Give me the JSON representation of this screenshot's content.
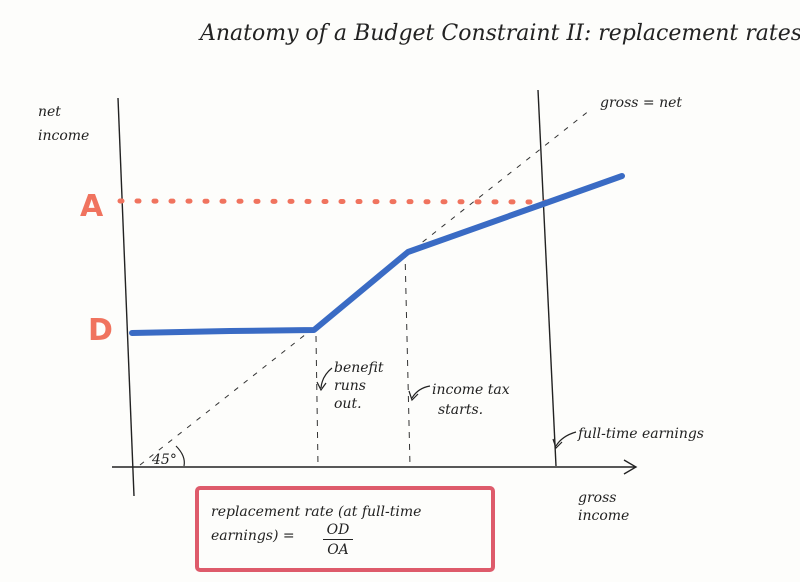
{
  "title": "Anatomy of a Budget Constraint II: replacement rates.",
  "axes": {
    "y_label_line1": "net",
    "y_label_line2": "income",
    "x_label_line1": "gross",
    "x_label_line2": "income"
  },
  "points": {
    "A": "A",
    "D": "D"
  },
  "annotations": {
    "gross_net": "gross = net",
    "angle": "45°",
    "benefit_line1": "benefit",
    "benefit_line2": "runs",
    "benefit_line3": "out.",
    "tax_line1": "income tax",
    "tax_line2": "starts.",
    "fulltime": "full-time earnings"
  },
  "formula": {
    "line1": "replacement rate (at full-time",
    "line2": "earnings) =",
    "numerator": "OD",
    "denominator": "OA"
  },
  "colors": {
    "budget_line": "#3a6bc4",
    "level_A": "#f0735e",
    "labels_red": "#f0735e",
    "box_border": "#de5b6b",
    "ink": "#222222"
  }
}
